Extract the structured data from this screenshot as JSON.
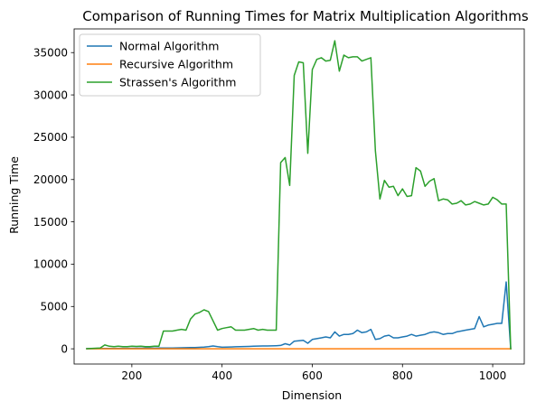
{
  "chart_data": {
    "type": "line",
    "title": "Comparison of Running Times for Matrix Multiplication Algorithms",
    "xlabel": "Dimension",
    "ylabel": "Running Time",
    "xlim": [
      72,
      1070
    ],
    "ylim": [
      -1800,
      37800
    ],
    "xticks": [
      200,
      400,
      600,
      800,
      1000
    ],
    "yticks": [
      0,
      5000,
      10000,
      15000,
      20000,
      25000,
      30000,
      35000
    ],
    "grid": false,
    "legend_position": "top-left",
    "series": [
      {
        "name": "Normal Algorithm",
        "color": "#1f77b4",
        "x": [
          100,
          110,
          120,
          130,
          140,
          150,
          160,
          170,
          180,
          190,
          200,
          210,
          220,
          230,
          240,
          250,
          260,
          270,
          280,
          290,
          300,
          310,
          320,
          330,
          340,
          350,
          360,
          370,
          380,
          390,
          400,
          410,
          420,
          430,
          440,
          450,
          460,
          470,
          480,
          490,
          500,
          510,
          520,
          530,
          540,
          550,
          560,
          570,
          580,
          590,
          600,
          610,
          620,
          630,
          640,
          650,
          660,
          670,
          680,
          690,
          700,
          710,
          720,
          730,
          740,
          750,
          760,
          770,
          780,
          790,
          800,
          810,
          820,
          830,
          840,
          850,
          860,
          870,
          880,
          890,
          900,
          910,
          920,
          930,
          940,
          950,
          960,
          970,
          980,
          990,
          1000,
          1010,
          1020,
          1030,
          1040
        ],
        "y": [
          20,
          25,
          30,
          35,
          40,
          40,
          45,
          50,
          55,
          55,
          60,
          65,
          70,
          75,
          80,
          80,
          85,
          90,
          95,
          100,
          110,
          120,
          130,
          140,
          150,
          170,
          200,
          250,
          330,
          250,
          180,
          200,
          220,
          240,
          260,
          270,
          280,
          300,
          320,
          330,
          340,
          350,
          370,
          400,
          600,
          450,
          900,
          950,
          1000,
          650,
          1100,
          1200,
          1300,
          1400,
          1300,
          2000,
          1500,
          1700,
          1700,
          1800,
          2200,
          1900,
          2000,
          2300,
          1100,
          1200,
          1500,
          1600,
          1300,
          1300,
          1400,
          1500,
          1700,
          1500,
          1600,
          1700,
          1900,
          2000,
          1900,
          1700,
          1800,
          1800,
          2000,
          2100,
          2200,
          2300,
          2400,
          3800,
          2600,
          2800,
          2900,
          3000,
          3000,
          7900,
          0
        ]
      },
      {
        "name": "Recursive Algorithm",
        "color": "#ff7f0e",
        "x": [
          100,
          1040
        ],
        "y": [
          0,
          0
        ]
      },
      {
        "name": "Strassen's Algorithm",
        "color": "#2ca02c",
        "x": [
          100,
          110,
          120,
          130,
          140,
          150,
          160,
          170,
          180,
          190,
          200,
          210,
          220,
          230,
          240,
          250,
          260,
          270,
          280,
          290,
          300,
          310,
          320,
          330,
          340,
          350,
          360,
          370,
          380,
          390,
          400,
          410,
          420,
          430,
          440,
          450,
          460,
          470,
          480,
          490,
          500,
          510,
          520,
          530,
          540,
          550,
          560,
          570,
          580,
          590,
          600,
          610,
          620,
          630,
          640,
          650,
          660,
          670,
          680,
          690,
          700,
          710,
          720,
          730,
          740,
          750,
          760,
          770,
          780,
          790,
          800,
          810,
          820,
          830,
          840,
          850,
          860,
          870,
          880,
          890,
          900,
          910,
          920,
          930,
          940,
          950,
          960,
          970,
          980,
          990,
          1000,
          1010,
          1020,
          1030,
          1040
        ],
        "y": [
          0,
          50,
          70,
          100,
          450,
          300,
          250,
          300,
          250,
          260,
          300,
          280,
          300,
          260,
          250,
          300,
          300,
          2100,
          2100,
          2100,
          2200,
          2300,
          2200,
          3500,
          4100,
          4300,
          4600,
          4400,
          3300,
          2200,
          2400,
          2500,
          2600,
          2200,
          2200,
          2200,
          2300,
          2400,
          2200,
          2300,
          2200,
          2200,
          2200,
          22000,
          22600,
          19300,
          32300,
          33900,
          33800,
          23100,
          33000,
          34200,
          34400,
          34000,
          34100,
          36400,
          32800,
          34700,
          34400,
          34500,
          34500,
          34000,
          34200,
          34400,
          23400,
          17700,
          19900,
          19100,
          19200,
          18100,
          18900,
          18000,
          18100,
          21400,
          21000,
          19200,
          19800,
          20100,
          17500,
          17700,
          17600,
          17100,
          17200,
          17500,
          17000,
          17100,
          17400,
          17200,
          17000,
          17100,
          17900,
          17600,
          17100,
          17100,
          0
        ]
      }
    ]
  }
}
